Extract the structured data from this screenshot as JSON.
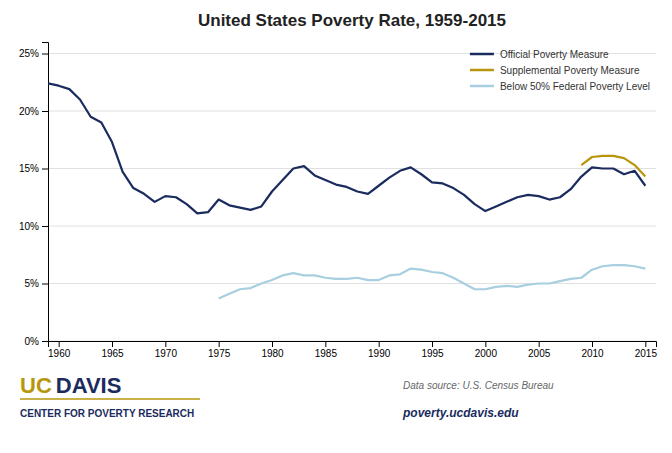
{
  "chart_data": {
    "type": "line",
    "title": "United States Poverty Rate, 1959-2015",
    "series": [
      {
        "name": "Official Poverty Measure",
        "color": "#1a2b5e",
        "x": [
          1959,
          1960,
          1961,
          1962,
          1963,
          1964,
          1965,
          1966,
          1967,
          1968,
          1969,
          1970,
          1971,
          1972,
          1973,
          1974,
          1975,
          1976,
          1977,
          1978,
          1979,
          1980,
          1981,
          1982,
          1983,
          1984,
          1985,
          1986,
          1987,
          1988,
          1989,
          1990,
          1991,
          1992,
          1993,
          1994,
          1995,
          1996,
          1997,
          1998,
          1999,
          2000,
          2001,
          2002,
          2003,
          2004,
          2005,
          2006,
          2007,
          2008,
          2009,
          2010,
          2011,
          2012,
          2013,
          2014,
          2015
        ],
        "values": [
          22.4,
          22.2,
          21.9,
          21.0,
          19.5,
          19.0,
          17.3,
          14.7,
          13.3,
          12.8,
          12.1,
          12.6,
          12.5,
          11.9,
          11.1,
          11.2,
          12.3,
          11.8,
          11.6,
          11.4,
          11.7,
          13.0,
          14.0,
          15.0,
          15.2,
          14.4,
          14.0,
          13.6,
          13.4,
          13.0,
          12.8,
          13.5,
          14.2,
          14.8,
          15.1,
          14.5,
          13.8,
          13.7,
          13.3,
          12.7,
          11.9,
          11.3,
          11.7,
          12.1,
          12.5,
          12.7,
          12.6,
          12.3,
          12.5,
          13.2,
          14.3,
          15.1,
          15.0,
          15.0,
          14.5,
          14.8,
          13.5
        ]
      },
      {
        "name": "Supplemental Poverty Measure",
        "color": "#b8960c",
        "x": [
          2009,
          2010,
          2011,
          2012,
          2013,
          2014,
          2015
        ],
        "values": [
          15.3,
          16.0,
          16.1,
          16.1,
          15.9,
          15.3,
          14.3
        ]
      },
      {
        "name": "Below 50% Federal Poverty Level",
        "color": "#a8cfe0",
        "x": [
          1975,
          1976,
          1977,
          1978,
          1979,
          1980,
          1981,
          1982,
          1983,
          1984,
          1985,
          1986,
          1987,
          1988,
          1989,
          1990,
          1991,
          1992,
          1993,
          1994,
          1995,
          1996,
          1997,
          1998,
          1999,
          2000,
          2001,
          2002,
          2003,
          2004,
          2005,
          2006,
          2007,
          2008,
          2009,
          2010,
          2011,
          2012,
          2013,
          2014,
          2015
        ],
        "values": [
          3.7,
          4.1,
          4.5,
          4.6,
          5.0,
          5.3,
          5.7,
          5.9,
          5.7,
          5.7,
          5.5,
          5.4,
          5.4,
          5.5,
          5.3,
          5.3,
          5.7,
          5.8,
          6.3,
          6.2,
          6.0,
          5.9,
          5.5,
          5.0,
          4.5,
          4.5,
          4.7,
          4.8,
          4.7,
          4.9,
          5.0,
          5.0,
          5.2,
          5.4,
          5.5,
          6.2,
          6.5,
          6.6,
          6.6,
          6.5,
          6.3
        ]
      }
    ],
    "xlim": [
      1959,
      2016
    ],
    "xticks": [
      1960,
      1965,
      1970,
      1975,
      1980,
      1985,
      1990,
      1995,
      2000,
      2005,
      2010,
      2015
    ],
    "ylim": [
      0,
      26
    ],
    "yticks": [
      {
        "value": 0,
        "label": "0%"
      },
      {
        "value": 5,
        "label": "5%"
      },
      {
        "value": 10,
        "label": "10%"
      },
      {
        "value": 15,
        "label": "15%"
      },
      {
        "value": 20,
        "label": "20%"
      },
      {
        "value": 25,
        "label": "25%"
      }
    ],
    "grid": true,
    "legend": "upper right",
    "annotations": [
      "UC",
      "DAVIS",
      "CENTER FOR POVERTY RESEARCH",
      "Data source: U.S. Census Bureau",
      "poverty.ucdavis.edu"
    ]
  }
}
